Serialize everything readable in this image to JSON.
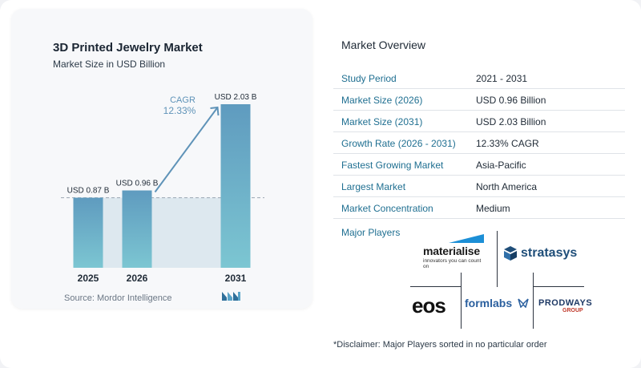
{
  "chart_data": {
    "type": "bar",
    "title": "3D Printed Jewelry Market",
    "subtitle": "Market Size in USD Billion",
    "categories": [
      "2025",
      "2026",
      "2031"
    ],
    "values": [
      0.87,
      0.96,
      2.03
    ],
    "data_labels": [
      "USD 0.87 B",
      "USD 0.96 B",
      "USD 2.03 B"
    ],
    "cagr_label": "CAGR",
    "cagr_value": "12.33%",
    "ylim": [
      0,
      2.1
    ],
    "grid": false,
    "colors": {
      "bar": "#5f9bbf",
      "bar_light": "#7cc6d2",
      "shade": "#dde8ef",
      "arrow": "#5f93b8",
      "dashed": "#9aa6b2"
    }
  },
  "source": "Source:  Mordor Intelligence",
  "overview": {
    "title": "Market Overview",
    "rows": [
      {
        "label": "Study Period",
        "value": "2021 - 2031"
      },
      {
        "label": "Market Size (2026)",
        "value": "USD 0.96 Billion"
      },
      {
        "label": "Market Size (2031)",
        "value": "USD 2.03 Billion"
      },
      {
        "label": "Growth Rate (2026 - 2031)",
        "value": "12.33% CAGR"
      },
      {
        "label": "Fastest Growing Market",
        "value": "Asia-Pacific"
      },
      {
        "label": "Largest Market",
        "value": "North America"
      },
      {
        "label": "Market Concentration",
        "value": "Medium"
      }
    ]
  },
  "players": {
    "title": "Major Players",
    "materialise": "materialise",
    "materialise_tag": "innovators you can count on",
    "stratasys": "stratasys",
    "eos": "eos",
    "formlabs": "formlabs",
    "prodways": "PRODWAYS",
    "prodways_group": "GROUP"
  },
  "disclaimer": "*Disclaimer: Major Players sorted in no particular order"
}
